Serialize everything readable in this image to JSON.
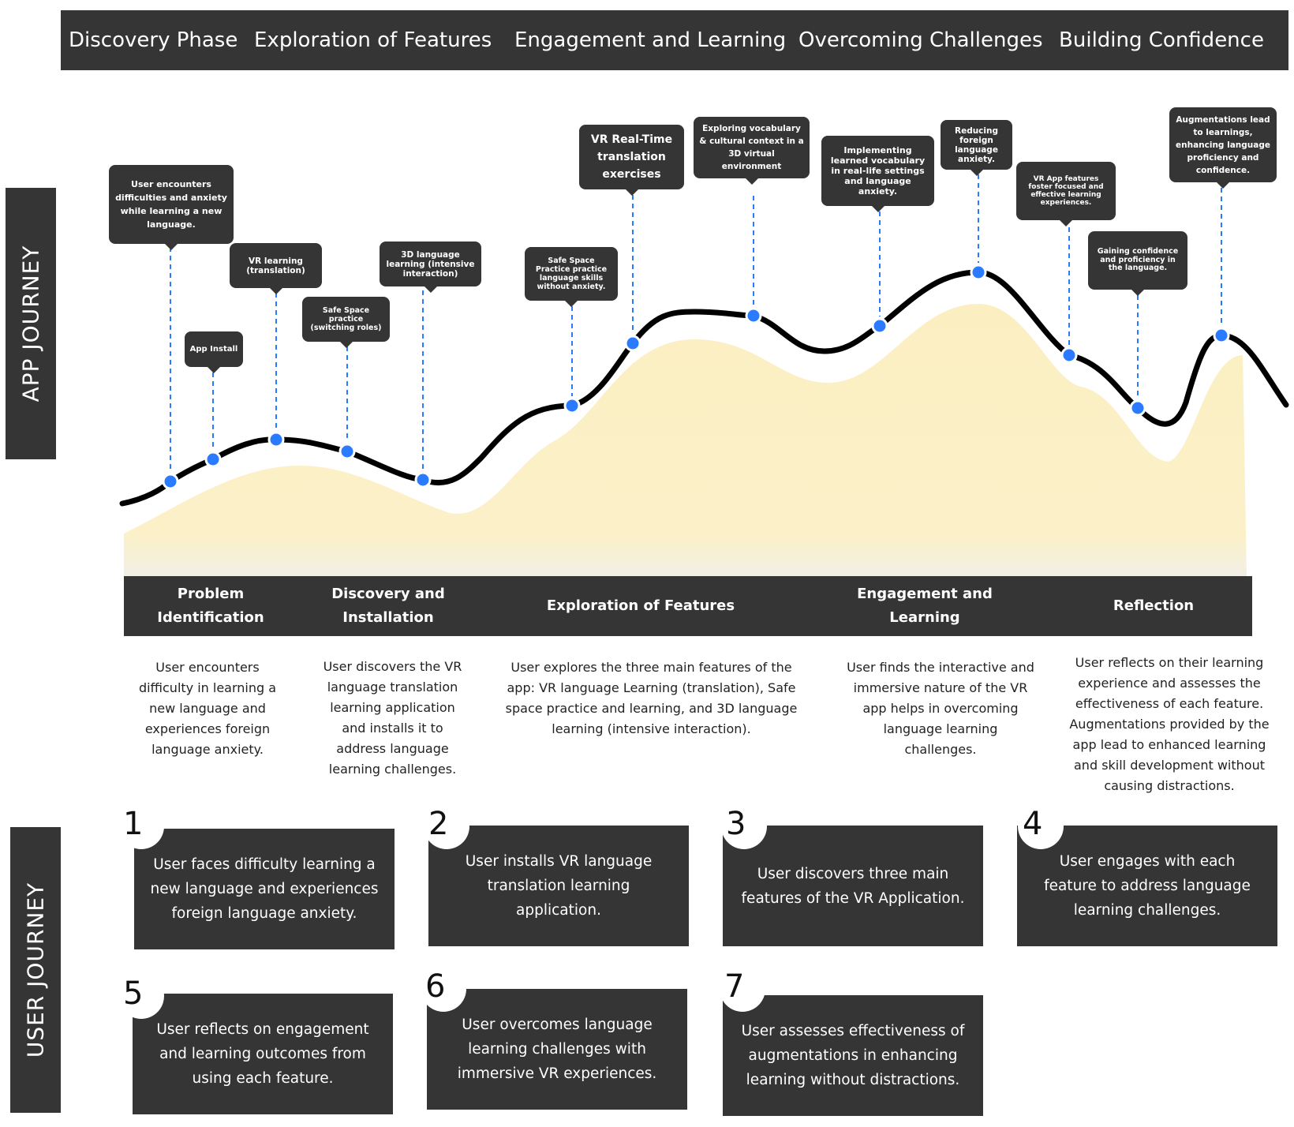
{
  "phases": [
    "Discovery Phase",
    "Exploration of Features",
    "Engagement and Learning",
    "Overcoming Challenges",
    "Building Confidence"
  ],
  "side_labels": {
    "app_journey": "APP JOURNEY",
    "user_journey": "USER JOURNEY"
  },
  "colors": {
    "dark": "#353535",
    "curve": "#000000",
    "dot": "#2a7bff",
    "area": "#fbefc2"
  },
  "app_journey_points": [
    "User encounters difficulties and anxiety while learning a new language.",
    "App Install",
    "VR learning (translation)",
    "Safe Space practice (switching roles)",
    "3D language learning (intensive interaction)",
    "Safe Space Practice practice language skills without anxiety.",
    "VR Real-Time translation exercises",
    "Exploring vocabulary & cultural context in a 3D virtual environment",
    "Implementing learned vocabulary in real-life settings and language anxiety.",
    "Reducing foreign language anxiety.",
    "VR App features foster focused and effective learning experiences.",
    "Gaining confidence and proficiency in the language.",
    "Augmentations lead to learnings, enhancing language proficiency and confidence."
  ],
  "stages": [
    "Problem Identification",
    "Discovery and Installation",
    "Exploration of Features",
    "Engagement and Learning",
    "Reflection"
  ],
  "stage_descriptions": [
    "User encounters difficulty in learning a new language and experiences foreign language anxiety.",
    "User discovers the VR language translation learning application and installs it to address language learning challenges.",
    "User explores the three main features of the app: VR language Learning (translation), Safe space practice and learning, and 3D language learning (intensive interaction).",
    "User finds the interactive and immersive nature of the VR app helps in overcoming language learning challenges.",
    "User reflects on their learning experience and assesses the effectiveness of each feature. Augmentations provided by the app lead to enhanced learning and skill development without causing distractions."
  ],
  "user_steps": [
    {
      "num": "1",
      "text": "User faces difficulty learning a new language and experiences foreign language anxiety."
    },
    {
      "num": "2",
      "text": "User installs VR language translation learning application."
    },
    {
      "num": "3",
      "text": "User discovers three main features of the VR Application."
    },
    {
      "num": "4",
      "text": "User engages with each feature to address language learning challenges."
    },
    {
      "num": "5",
      "text": "User reflects on engagement and learning outcomes from using each feature."
    },
    {
      "num": "6",
      "text": "User overcomes language learning challenges with immersive VR experiences."
    },
    {
      "num": "7",
      "text": "User assesses effectiveness of augmentations in enhancing learning without distractions."
    }
  ]
}
